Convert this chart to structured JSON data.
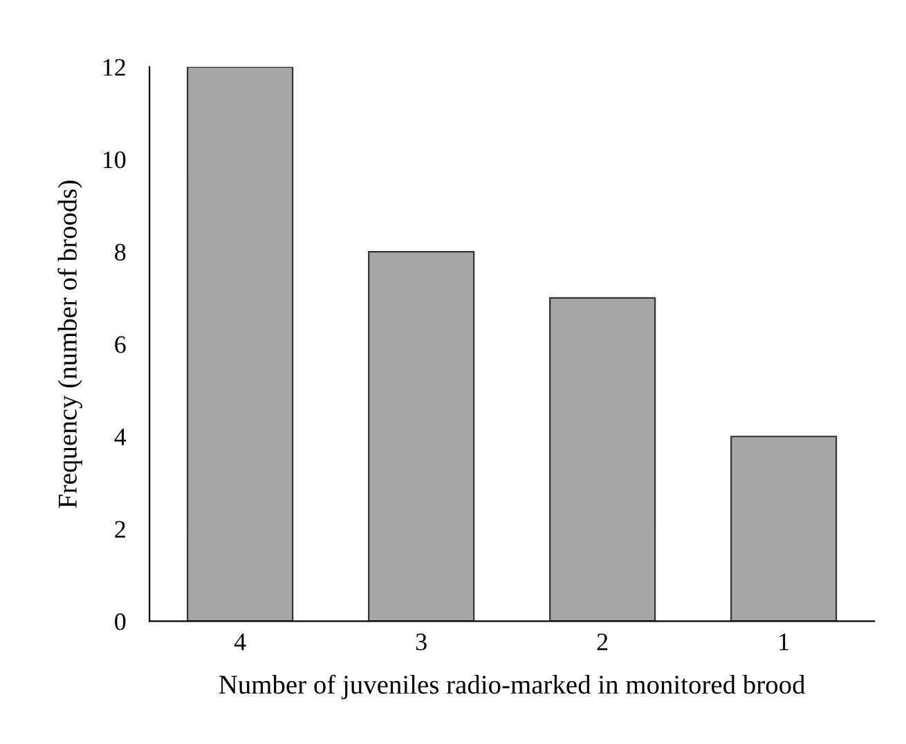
{
  "chart_data": {
    "type": "bar",
    "xlabel": "Number of juveniles radio-marked in monitored brood",
    "ylabel": "Frequency (number of broods)",
    "categories": [
      "4",
      "3",
      "2",
      "1"
    ],
    "values": [
      12,
      8,
      7,
      4
    ],
    "color": "#a6a6a6",
    "ylim": [
      0,
      12
    ],
    "yticks": [
      0,
      2,
      4,
      6,
      8,
      10,
      12
    ],
    "grid": false,
    "legend": false
  }
}
